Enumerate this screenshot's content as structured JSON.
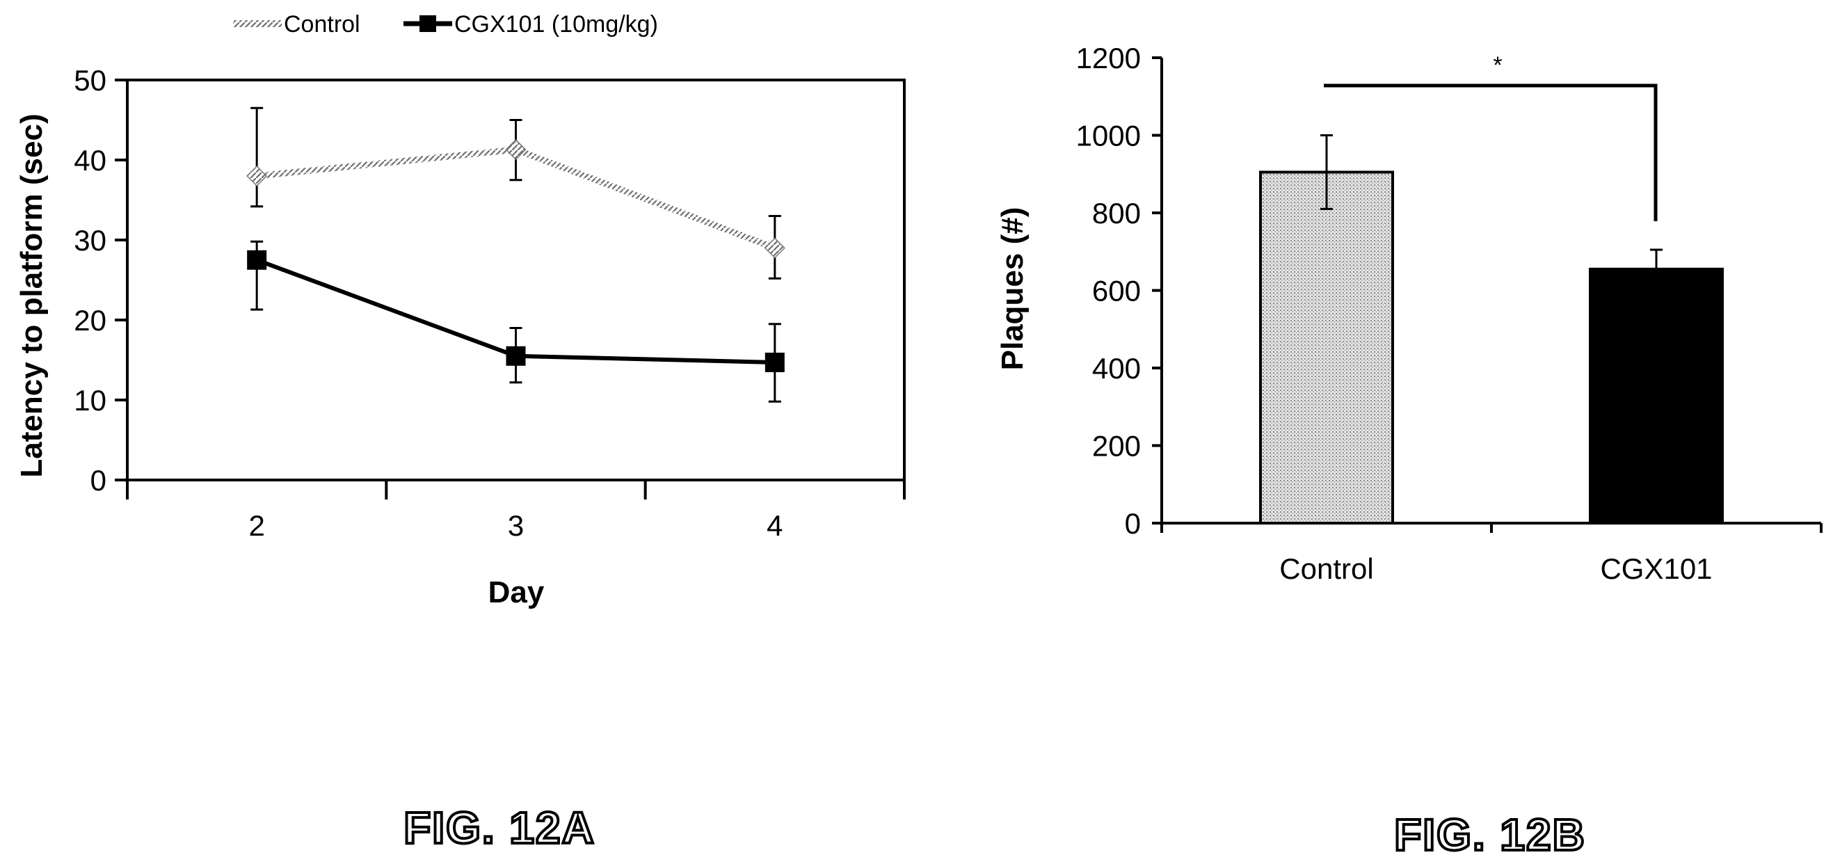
{
  "chart_data": [
    {
      "type": "line",
      "legend": {
        "placement": "top",
        "entries": [
          "Control",
          "CGX101 (10mg/kg)"
        ]
      },
      "xlabel": "Day",
      "ylabel": "Latency to platform (sec)",
      "categories": [
        "2",
        "3",
        "4"
      ],
      "ylim": [
        0,
        50
      ],
      "yticks": [
        "0",
        "10",
        "20",
        "30",
        "40",
        "50"
      ],
      "series": [
        {
          "name": "Control",
          "values": [
            38,
            41.3,
            29
          ],
          "err_high": [
            46.5,
            45,
            33
          ],
          "err_low": [
            34.2,
            37.5,
            25.2
          ],
          "color": "#9a9a9a",
          "marker": "diamond"
        },
        {
          "name": "CGX101 (10mg/kg)",
          "values": [
            27.5,
            15.5,
            14.7
          ],
          "err_high": [
            29.8,
            19,
            19.5
          ],
          "err_low": [
            21.3,
            12.2,
            9.8
          ],
          "color": "#000000",
          "marker": "square"
        }
      ],
      "figure_label": "FIG. 12A"
    },
    {
      "type": "bar",
      "ylabel": "Plaques (#)",
      "categories": [
        "Control",
        "CGX101"
      ],
      "values": [
        905,
        655
      ],
      "err_high": [
        1000,
        705
      ],
      "err_low": [
        810,
        620
      ],
      "ylim": [
        0,
        1200
      ],
      "yticks": [
        "0",
        "200",
        "400",
        "600",
        "800",
        "1000",
        "1200"
      ],
      "bar_colors": [
        "#d8d8d8",
        "#000000"
      ],
      "significance": {
        "label": "*",
        "between": [
          "Control",
          "CGX101"
        ]
      },
      "figure_label": "FIG. 12B"
    }
  ]
}
